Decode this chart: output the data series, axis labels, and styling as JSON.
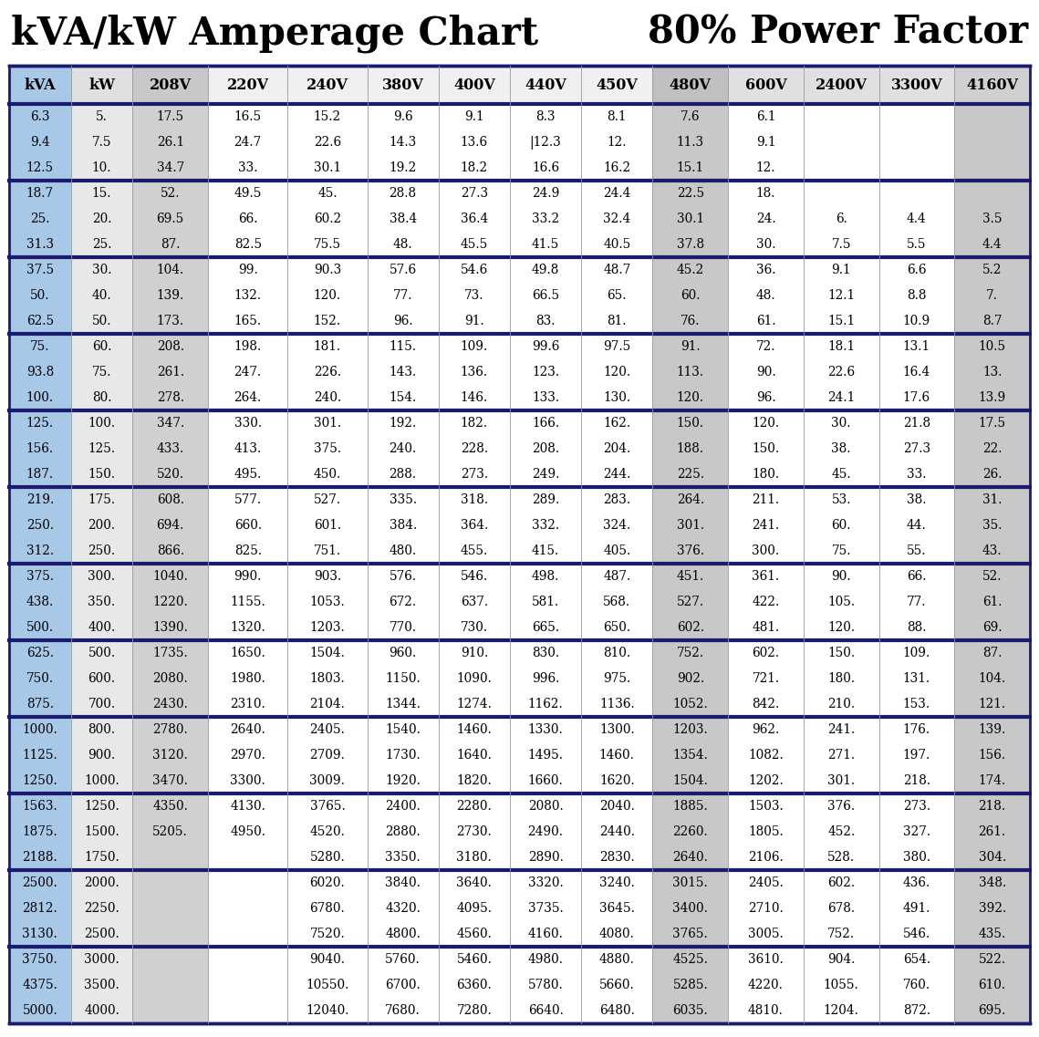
{
  "title_left": "kVA/kW Amperage Chart",
  "title_right": "80% Power Factor",
  "headers": [
    "kVA",
    "kW",
    "208V",
    "220V",
    "240V",
    "380V",
    "400V",
    "440V",
    "450V",
    "480V",
    "600V",
    "2400V",
    "3300V",
    "4160V"
  ],
  "col_bg_colors": [
    "#a8c8e8",
    "#e8e8e8",
    "#d0d0d0",
    "#ffffff",
    "#ffffff",
    "#ffffff",
    "#ffffff",
    "#ffffff",
    "#ffffff",
    "#c8c8c8",
    "#ffffff",
    "#ffffff",
    "#ffffff",
    "#c8c8c8"
  ],
  "groups": [
    [
      [
        "6.3",
        "5.",
        "17.5",
        "16.5",
        "15.2",
        "9.6",
        "9.1",
        "8.3",
        "8.1",
        "7.6",
        "6.1",
        "",
        "",
        ""
      ],
      [
        "9.4",
        "7.5",
        "26.1",
        "24.7",
        "22.6",
        "14.3",
        "13.6",
        "|12.3",
        "12.",
        "11.3",
        "9.1",
        "",
        "",
        ""
      ],
      [
        "12.5",
        "10.",
        "34.7",
        "33.",
        "30.1",
        "19.2",
        "18.2",
        "16.6",
        "16.2",
        "15.1",
        "12.",
        "",
        "",
        ""
      ]
    ],
    [
      [
        "18.7",
        "15.",
        "52.",
        "49.5",
        "45.",
        "28.8",
        "27.3",
        "24.9",
        "24.4",
        "22.5",
        "18.",
        "",
        "",
        ""
      ],
      [
        "25.",
        "20.",
        "69.5",
        "66.",
        "60.2",
        "38.4",
        "36.4",
        "33.2",
        "32.4",
        "30.1",
        "24.",
        "6.",
        "4.4",
        "3.5"
      ],
      [
        "31.3",
        "25.",
        "87.",
        "82.5",
        "75.5",
        "48.",
        "45.5",
        "41.5",
        "40.5",
        "37.8",
        "30.",
        "7.5",
        "5.5",
        "4.4"
      ]
    ],
    [
      [
        "37.5",
        "30.",
        "104.",
        "99.",
        "90.3",
        "57.6",
        "54.6",
        "49.8",
        "48.7",
        "45.2",
        "36.",
        "9.1",
        "6.6",
        "5.2"
      ],
      [
        "50.",
        "40.",
        "139.",
        "132.",
        "120.",
        "77.",
        "73.",
        "66.5",
        "65.",
        "60.",
        "48.",
        "12.1",
        "8.8",
        "7."
      ],
      [
        "62.5",
        "50.",
        "173.",
        "165.",
        "152.",
        "96.",
        "91.",
        "83.",
        "81.",
        "76.",
        "61.",
        "15.1",
        "10.9",
        "8.7"
      ]
    ],
    [
      [
        "75.",
        "60.",
        "208.",
        "198.",
        "181.",
        "115.",
        "109.",
        "99.6",
        "97.5",
        "91.",
        "72.",
        "18.1",
        "13.1",
        "10.5"
      ],
      [
        "93.8",
        "75.",
        "261.",
        "247.",
        "226.",
        "143.",
        "136.",
        "123.",
        "120.",
        "113.",
        "90.",
        "22.6",
        "16.4",
        "13."
      ],
      [
        "100.",
        "80.",
        "278.",
        "264.",
        "240.",
        "154.",
        "146.",
        "133.",
        "130.",
        "120.",
        "96.",
        "24.1",
        "17.6",
        "13.9"
      ]
    ],
    [
      [
        "125.",
        "100.",
        "347.",
        "330.",
        "301.",
        "192.",
        "182.",
        "166.",
        "162.",
        "150.",
        "120.",
        "30.",
        "21.8",
        "17.5"
      ],
      [
        "156.",
        "125.",
        "433.",
        "413.",
        "375.",
        "240.",
        "228.",
        "208.",
        "204.",
        "188.",
        "150.",
        "38.",
        "27.3",
        "22."
      ],
      [
        "187.",
        "150.",
        "520.",
        "495.",
        "450.",
        "288.",
        "273.",
        "249.",
        "244.",
        "225.",
        "180.",
        "45.",
        "33.",
        "26."
      ]
    ],
    [
      [
        "219.",
        "175.",
        "608.",
        "577.",
        "527.",
        "335.",
        "318.",
        "289.",
        "283.",
        "264.",
        "211.",
        "53.",
        "38.",
        "31."
      ],
      [
        "250.",
        "200.",
        "694.",
        "660.",
        "601.",
        "384.",
        "364.",
        "332.",
        "324.",
        "301.",
        "241.",
        "60.",
        "44.",
        "35."
      ],
      [
        "312.",
        "250.",
        "866.",
        "825.",
        "751.",
        "480.",
        "455.",
        "415.",
        "405.",
        "376.",
        "300.",
        "75.",
        "55.",
        "43."
      ]
    ],
    [
      [
        "375.",
        "300.",
        "1040.",
        "990.",
        "903.",
        "576.",
        "546.",
        "498.",
        "487.",
        "451.",
        "361.",
        "90.",
        "66.",
        "52."
      ],
      [
        "438.",
        "350.",
        "1220.",
        "1155.",
        "1053.",
        "672.",
        "637.",
        "581.",
        "568.",
        "527.",
        "422.",
        "105.",
        "77.",
        "61."
      ],
      [
        "500.",
        "400.",
        "1390.",
        "1320.",
        "1203.",
        "770.",
        "730.",
        "665.",
        "650.",
        "602.",
        "481.",
        "120.",
        "88.",
        "69."
      ]
    ],
    [
      [
        "625.",
        "500.",
        "1735.",
        "1650.",
        "1504.",
        "960.",
        "910.",
        "830.",
        "810.",
        "752.",
        "602.",
        "150.",
        "109.",
        "87."
      ],
      [
        "750.",
        "600.",
        "2080.",
        "1980.",
        "1803.",
        "1150.",
        "1090.",
        "996.",
        "975.",
        "902.",
        "721.",
        "180.",
        "131.",
        "104."
      ],
      [
        "875.",
        "700.",
        "2430.",
        "2310.",
        "2104.",
        "1344.",
        "1274.",
        "1162.",
        "1136.",
        "1052.",
        "842.",
        "210.",
        "153.",
        "121."
      ]
    ],
    [
      [
        "1000.",
        "800.",
        "2780.",
        "2640.",
        "2405.",
        "1540.",
        "1460.",
        "1330.",
        "1300.",
        "1203.",
        "962.",
        "241.",
        "176.",
        "139."
      ],
      [
        "1125.",
        "900.",
        "3120.",
        "2970.",
        "2709.",
        "1730.",
        "1640.",
        "1495.",
        "1460.",
        "1354.",
        "1082.",
        "271.",
        "197.",
        "156."
      ],
      [
        "1250.",
        "1000.",
        "3470.",
        "3300.",
        "3009.",
        "1920.",
        "1820.",
        "1660.",
        "1620.",
        "1504.",
        "1202.",
        "301.",
        "218.",
        "174."
      ]
    ],
    [
      [
        "1563.",
        "1250.",
        "4350.",
        "4130.",
        "3765.",
        "2400.",
        "2280.",
        "2080.",
        "2040.",
        "1885.",
        "1503.",
        "376.",
        "273.",
        "218."
      ],
      [
        "1875.",
        "1500.",
        "5205.",
        "4950.",
        "4520.",
        "2880.",
        "2730.",
        "2490.",
        "2440.",
        "2260.",
        "1805.",
        "452.",
        "327.",
        "261."
      ],
      [
        "2188.",
        "1750.",
        "",
        "",
        "5280.",
        "3350.",
        "3180.",
        "2890.",
        "2830.",
        "2640.",
        "2106.",
        "528.",
        "380.",
        "304."
      ]
    ],
    [
      [
        "2500.",
        "2000.",
        "",
        "",
        "6020.",
        "3840.",
        "3640.",
        "3320.",
        "3240.",
        "3015.",
        "2405.",
        "602.",
        "436.",
        "348."
      ],
      [
        "2812.",
        "2250.",
        "",
        "",
        "6780.",
        "4320.",
        "4095.",
        "3735.",
        "3645.",
        "3400.",
        "2710.",
        "678.",
        "491.",
        "392."
      ],
      [
        "3130.",
        "2500.",
        "",
        "",
        "7520.",
        "4800.",
        "4560.",
        "4160.",
        "4080.",
        "3765.",
        "3005.",
        "752.",
        "546.",
        "435."
      ]
    ],
    [
      [
        "3750.",
        "3000.",
        "",
        "",
        "9040.",
        "5760.",
        "5460.",
        "4980.",
        "4880.",
        "4525.",
        "3610.",
        "904.",
        "654.",
        "522."
      ],
      [
        "4375.",
        "3500.",
        "",
        "",
        "10550.",
        "6700.",
        "6360.",
        "5780.",
        "5660.",
        "5285.",
        "4220.",
        "1055.",
        "760.",
        "610."
      ],
      [
        "5000.",
        "4000.",
        "",
        "",
        "12040.",
        "7680.",
        "7280.",
        "6640.",
        "6480.",
        "6035.",
        "4810.",
        "1204.",
        "872.",
        "695."
      ]
    ]
  ]
}
